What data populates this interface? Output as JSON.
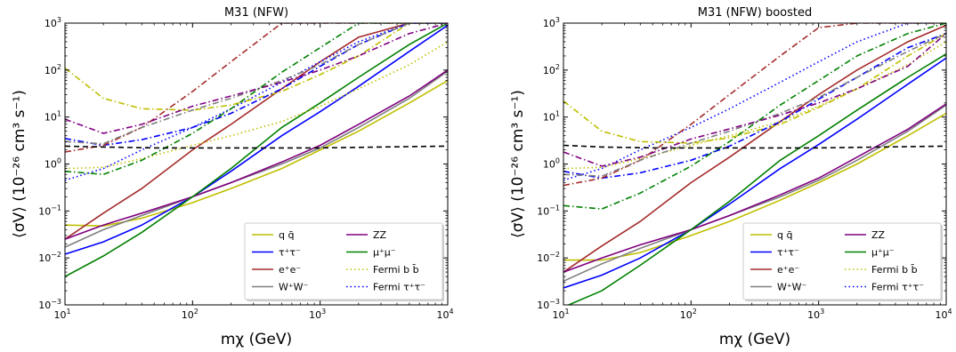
{
  "chart_data": [
    {
      "type": "line",
      "title": "M31 (NFW)",
      "xlabel": "mχ (GeV)",
      "ylabel": "⟨σV⟩ (10⁻²⁶ cm³ s⁻¹)",
      "xscale": "log",
      "yscale": "log",
      "xlim": [
        10,
        10000
      ],
      "ylim": [
        0.001,
        1000
      ],
      "xticks": [
        {
          "v": 10,
          "b": "10",
          "e": "1"
        },
        {
          "v": 100,
          "b": "10",
          "e": "2"
        },
        {
          "v": 1000,
          "b": "10",
          "e": "3"
        },
        {
          "v": 10000,
          "b": "10",
          "e": "4"
        }
      ],
      "yticks": [
        {
          "v": 0.001,
          "b": "10",
          "e": "−3"
        },
        {
          "v": 0.01,
          "b": "10",
          "e": "−2"
        },
        {
          "v": 0.1,
          "b": "10",
          "e": "−1"
        },
        {
          "v": 1,
          "b": "10",
          "e": "0"
        },
        {
          "v": 10,
          "b": "10",
          "e": "1"
        },
        {
          "v": 100,
          "b": "10",
          "e": "2"
        },
        {
          "v": 1000,
          "b": "10",
          "e": "3"
        }
      ],
      "legend_position": "bottom-right",
      "series": [
        {
          "name": "q q̄",
          "color": "#bfbf00",
          "dash": "solid",
          "x": [
            10,
            20,
            40,
            100,
            200,
            500,
            1000,
            2000,
            5000,
            10000
          ],
          "y": [
            0.05,
            0.048,
            0.07,
            0.15,
            0.3,
            0.8,
            2,
            5,
            20,
            60
          ]
        },
        {
          "name": "τ⁺τ⁻",
          "color": "#0000ff",
          "dash": "solid",
          "x": [
            10,
            20,
            40,
            100,
            200,
            500,
            1000,
            2000,
            5000,
            10000
          ],
          "y": [
            0.012,
            0.022,
            0.05,
            0.2,
            0.7,
            4,
            13,
            45,
            250,
            900
          ]
        },
        {
          "name": "e⁺e⁻",
          "color": "#a52a2a",
          "dash": "solid",
          "x": [
            10,
            20,
            40,
            100,
            200,
            500,
            1000,
            2000,
            5000,
            10000
          ],
          "y": [
            0.025,
            0.09,
            0.3,
            2,
            7,
            40,
            150,
            500,
            1000,
            1000
          ]
        },
        {
          "name": "W⁺W⁻",
          "color": "#808080",
          "dash": "solid",
          "x": [
            10,
            20,
            40,
            100,
            200,
            500,
            1000,
            2000,
            5000,
            10000
          ],
          "y": [
            0.017,
            0.04,
            0.08,
            0.2,
            0.4,
            1,
            2.2,
            6,
            25,
            95
          ]
        },
        {
          "name": "ZZ",
          "color": "#800080",
          "dash": "solid",
          "x": [
            10,
            20,
            40,
            100,
            200,
            500,
            1000,
            2000,
            5000,
            10000
          ],
          "y": [
            0.025,
            0.05,
            0.09,
            0.2,
            0.4,
            1.1,
            2.5,
            7,
            28,
            100
          ]
        },
        {
          "name": "μ⁺μ⁻",
          "color": "#008000",
          "dash": "solid",
          "x": [
            10,
            20,
            40,
            100,
            200,
            500,
            1000,
            2000,
            5000,
            10000
          ],
          "y": [
            0.004,
            0.011,
            0.035,
            0.2,
            0.8,
            6,
            20,
            70,
            350,
            1000
          ]
        },
        {
          "name": "Fermi b b̄",
          "color": "#bfbf00",
          "dash": "dot",
          "x": [
            10,
            20,
            40,
            100,
            200,
            500,
            1000,
            2000,
            5000,
            10000
          ],
          "y": [
            0.8,
            0.85,
            1.3,
            2.5,
            4,
            8,
            17,
            40,
            130,
            400
          ]
        },
        {
          "name": "Fermi τ⁺τ⁻",
          "color": "#0000ff",
          "dash": "dot",
          "x": [
            10,
            20,
            40,
            100,
            200,
            500,
            1000,
            2000,
            5000,
            7000
          ],
          "y": [
            0.45,
            0.8,
            2,
            6,
            15,
            55,
            150,
            400,
            1000,
            1000
          ]
        },
        {
          "name": "",
          "color": "#bfbf00",
          "dash": "dashdot",
          "x": [
            10,
            20,
            40,
            100,
            200,
            500,
            1000,
            2000,
            5000,
            10000
          ],
          "y": [
            110,
            25,
            15,
            14,
            18,
            35,
            80,
            200,
            1000,
            1000
          ]
        },
        {
          "name": "",
          "color": "#0000ff",
          "dash": "dashdot",
          "x": [
            10,
            20,
            40,
            100,
            200,
            500,
            1000,
            2000,
            5000,
            10000
          ],
          "y": [
            3.5,
            2.5,
            3.3,
            6,
            12,
            40,
            120,
            350,
            1000,
            1000
          ]
        },
        {
          "name": "",
          "color": "#a52a2a",
          "dash": "dashdot",
          "x": [
            10,
            20,
            40,
            100,
            200,
            500,
            1000,
            2000,
            5000
          ],
          "y": [
            1.8,
            2.5,
            6,
            35,
            150,
            1000,
            1000,
            1000,
            1000
          ]
        },
        {
          "name": "",
          "color": "#808080",
          "dash": "dashdot",
          "x": [
            10,
            20,
            40,
            100,
            200,
            500,
            1000,
            2000,
            5000,
            10000
          ],
          "y": [
            3,
            2.7,
            6,
            14,
            25,
            60,
            130,
            350,
            1000,
            1000
          ]
        },
        {
          "name": "",
          "color": "#800080",
          "dash": "dashdot",
          "x": [
            10,
            20,
            40,
            100,
            200,
            500,
            1000,
            2000,
            5000,
            10000
          ],
          "y": [
            9,
            4.5,
            7,
            17,
            28,
            55,
            100,
            200,
            600,
            1000
          ]
        },
        {
          "name": "",
          "color": "#008000",
          "dash": "dashdot",
          "x": [
            10,
            20,
            40,
            100,
            200,
            500,
            1000,
            2000,
            5000
          ],
          "y": [
            0.7,
            0.6,
            1.2,
            4.5,
            15,
            90,
            300,
            1000,
            1000
          ]
        },
        {
          "name": "",
          "color": "#000000",
          "dash": "dash",
          "x": [
            10,
            20,
            50,
            100,
            300,
            1000,
            3000,
            10000
          ],
          "y": [
            2.4,
            2.3,
            2.2,
            2.2,
            2.2,
            2.2,
            2.3,
            2.4
          ]
        }
      ]
    },
    {
      "type": "line",
      "title": "M31 (NFW) boosted",
      "xlabel": "mχ (GeV)",
      "ylabel": "⟨σV⟩ (10⁻²⁶ cm³ s⁻¹)",
      "xscale": "log",
      "yscale": "log",
      "xlim": [
        10,
        10000
      ],
      "ylim": [
        0.001,
        1000
      ],
      "xticks": [
        {
          "v": 10,
          "b": "10",
          "e": "1"
        },
        {
          "v": 100,
          "b": "10",
          "e": "2"
        },
        {
          "v": 1000,
          "b": "10",
          "e": "3"
        },
        {
          "v": 10000,
          "b": "10",
          "e": "4"
        }
      ],
      "yticks": [
        {
          "v": 0.001,
          "b": "10",
          "e": "−3"
        },
        {
          "v": 0.01,
          "b": "10",
          "e": "−2"
        },
        {
          "v": 0.1,
          "b": "10",
          "e": "−1"
        },
        {
          "v": 1,
          "b": "10",
          "e": "0"
        },
        {
          "v": 10,
          "b": "10",
          "e": "1"
        },
        {
          "v": 100,
          "b": "10",
          "e": "2"
        },
        {
          "v": 1000,
          "b": "10",
          "e": "3"
        }
      ],
      "legend_position": "bottom-right",
      "series": [
        {
          "name": "q q̄",
          "color": "#bfbf00",
          "dash": "solid",
          "x": [
            10,
            20,
            40,
            100,
            200,
            500,
            1000,
            2000,
            5000,
            10000
          ],
          "y": [
            0.009,
            0.009,
            0.013,
            0.03,
            0.06,
            0.17,
            0.4,
            1,
            4,
            12
          ]
        },
        {
          "name": "τ⁺τ⁻",
          "color": "#0000ff",
          "dash": "solid",
          "x": [
            10,
            20,
            40,
            100,
            200,
            500,
            1000,
            2000,
            5000,
            10000
          ],
          "y": [
            0.0023,
            0.0043,
            0.01,
            0.04,
            0.14,
            0.8,
            2.6,
            9,
            50,
            180
          ]
        },
        {
          "name": "e⁺e⁻",
          "color": "#a52a2a",
          "dash": "solid",
          "x": [
            10,
            20,
            40,
            100,
            200,
            500,
            1000,
            2000,
            5000,
            10000
          ],
          "y": [
            0.005,
            0.018,
            0.06,
            0.4,
            1.4,
            8,
            30,
            100,
            400,
            900
          ]
        },
        {
          "name": "W⁺W⁻",
          "color": "#808080",
          "dash": "solid",
          "x": [
            10,
            20,
            40,
            100,
            200,
            500,
            1000,
            2000,
            5000,
            10000
          ],
          "y": [
            0.0032,
            0.0075,
            0.016,
            0.04,
            0.08,
            0.2,
            0.45,
            1.2,
            5,
            18
          ]
        },
        {
          "name": "ZZ",
          "color": "#800080",
          "dash": "solid",
          "x": [
            10,
            20,
            40,
            100,
            200,
            500,
            1000,
            2000,
            5000,
            10000
          ],
          "y": [
            0.005,
            0.01,
            0.019,
            0.04,
            0.08,
            0.22,
            0.5,
            1.4,
            5.5,
            19
          ]
        },
        {
          "name": "μ⁺μ⁻",
          "color": "#008000",
          "dash": "solid",
          "x": [
            11,
            20,
            40,
            100,
            200,
            500,
            1000,
            2000,
            5000,
            10000
          ],
          "y": [
            0.001,
            0.002,
            0.007,
            0.04,
            0.16,
            1.2,
            4,
            14,
            70,
            220
          ]
        },
        {
          "name": "Fermi b b̄",
          "color": "#bfbf00",
          "dash": "dot",
          "x": [
            10,
            20,
            40,
            100,
            200,
            500,
            1000,
            2000,
            5000,
            10000
          ],
          "y": [
            0.8,
            0.85,
            1.3,
            2.5,
            4,
            8,
            17,
            40,
            130,
            400
          ]
        },
        {
          "name": "Fermi τ⁺τ⁻",
          "color": "#0000ff",
          "dash": "dot",
          "x": [
            10,
            20,
            40,
            100,
            200,
            500,
            1000,
            2000,
            5000,
            7000
          ],
          "y": [
            0.45,
            0.8,
            2,
            6,
            15,
            55,
            150,
            400,
            1000,
            1000
          ]
        },
        {
          "name": "",
          "color": "#bfbf00",
          "dash": "dashdot",
          "x": [
            10,
            20,
            40,
            100,
            200,
            500,
            1000,
            2000,
            5000,
            10000
          ],
          "y": [
            22,
            5,
            3,
            2.8,
            3.6,
            7,
            16,
            40,
            200,
            600
          ]
        },
        {
          "name": "",
          "color": "#0000ff",
          "dash": "dashdot",
          "x": [
            10,
            20,
            40,
            100,
            200,
            500,
            1000,
            2000,
            5000,
            10000
          ],
          "y": [
            0.7,
            0.5,
            0.65,
            1.2,
            2.4,
            8,
            24,
            70,
            300,
            600
          ]
        },
        {
          "name": "",
          "color": "#a52a2a",
          "dash": "dashdot",
          "x": [
            10,
            20,
            40,
            100,
            200,
            500,
            1000,
            2000,
            5000,
            10000
          ],
          "y": [
            0.35,
            0.5,
            1.2,
            7,
            30,
            200,
            800,
            1000,
            1000,
            1000
          ]
        },
        {
          "name": "",
          "color": "#808080",
          "dash": "dashdot",
          "x": [
            10,
            20,
            40,
            100,
            200,
            500,
            1000,
            2000,
            5000,
            10000
          ],
          "y": [
            0.6,
            0.55,
            1.2,
            2.8,
            5,
            12,
            26,
            70,
            250,
            600
          ]
        },
        {
          "name": "",
          "color": "#800080",
          "dash": "dashdot",
          "x": [
            10,
            20,
            40,
            100,
            200,
            500,
            1000,
            2000,
            5000,
            10000
          ],
          "y": [
            1.8,
            0.9,
            1.4,
            3.4,
            5.6,
            11,
            20,
            40,
            120,
            600
          ]
        },
        {
          "name": "",
          "color": "#008000",
          "dash": "dashdot",
          "x": [
            10,
            20,
            40,
            100,
            200,
            500,
            1000,
            2000,
            5000,
            10000
          ],
          "y": [
            0.13,
            0.11,
            0.24,
            0.9,
            3,
            18,
            60,
            200,
            600,
            1000
          ]
        },
        {
          "name": "",
          "color": "#000000",
          "dash": "dash",
          "x": [
            10,
            20,
            50,
            100,
            300,
            1000,
            3000,
            10000
          ],
          "y": [
            2.5,
            2.3,
            2.2,
            2.2,
            2.2,
            2.2,
            2.3,
            2.4
          ]
        }
      ]
    }
  ]
}
